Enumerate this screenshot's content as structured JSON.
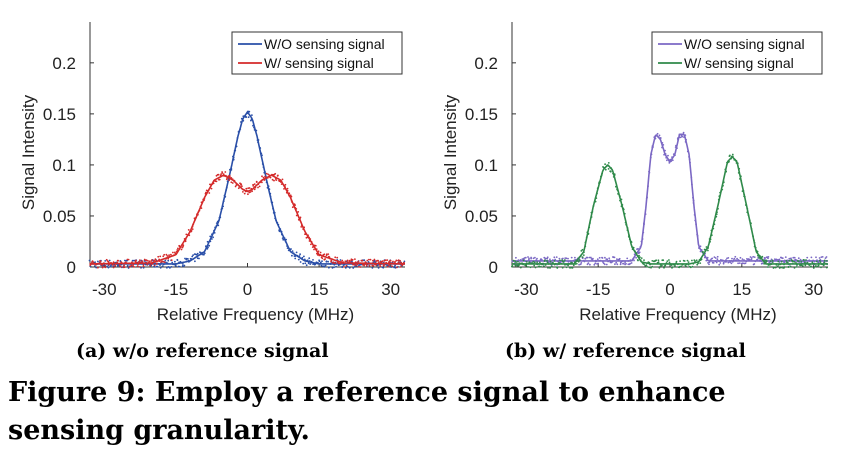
{
  "figure_caption": "Figure 9: Employ a reference signal to enhance sensing granularity.",
  "chart_data": [
    {
      "type": "line",
      "subcaption": "(a) w/o reference signal",
      "title": "",
      "xlabel": "Relative Frequency (MHz)",
      "ylabel": "Signal Intensity",
      "xlim": [
        -33,
        33
      ],
      "ylim": [
        0,
        0.24
      ],
      "xticks": [
        -30,
        -15,
        0,
        15,
        30
      ],
      "xtick_labels": [
        "-30",
        "-15",
        "0",
        "15",
        "30"
      ],
      "yticks": [
        0,
        0.05,
        0.1,
        0.15,
        0.2
      ],
      "ytick_labels": [
        "0",
        "0.05",
        "0.1",
        "0.15",
        "0.2"
      ],
      "grid": false,
      "legend_position": "top-right",
      "series": [
        {
          "name": "W/O sensing signal",
          "color": "#2a4fa8",
          "x": [
            -33,
            -15,
            -12,
            -9,
            -6,
            -4,
            -2,
            -1,
            0,
            1,
            2,
            4,
            6,
            9,
            12,
            15,
            33
          ],
          "values": [
            0.003,
            0.003,
            0.006,
            0.015,
            0.045,
            0.085,
            0.128,
            0.145,
            0.152,
            0.145,
            0.128,
            0.085,
            0.045,
            0.015,
            0.006,
            0.003,
            0.003
          ]
        },
        {
          "name": "W/ sensing signal",
          "color": "#d42a2a",
          "x": [
            -33,
            -20,
            -15,
            -12,
            -9,
            -7,
            -5,
            -3,
            -1,
            0,
            1,
            3,
            5,
            7,
            9,
            12,
            15,
            20,
            33
          ],
          "values": [
            0.003,
            0.004,
            0.012,
            0.035,
            0.068,
            0.085,
            0.09,
            0.085,
            0.076,
            0.074,
            0.076,
            0.085,
            0.09,
            0.085,
            0.068,
            0.035,
            0.012,
            0.004,
            0.003
          ]
        }
      ]
    },
    {
      "type": "line",
      "subcaption": "(b) w/ reference signal",
      "title": "",
      "xlabel": "Relative Frequency (MHz)",
      "ylabel": "Signal Intensity",
      "xlim": [
        -33,
        33
      ],
      "ylim": [
        0,
        0.24
      ],
      "xticks": [
        -30,
        -15,
        0,
        15,
        30
      ],
      "xtick_labels": [
        "-30",
        "-15",
        "0",
        "15",
        "30"
      ],
      "yticks": [
        0,
        0.05,
        0.1,
        0.15,
        0.2
      ],
      "ytick_labels": [
        "0",
        "0.05",
        "0.1",
        "0.15",
        "0.2"
      ],
      "grid": false,
      "legend_position": "top-right",
      "series": [
        {
          "name": "W/O sensing signal",
          "color": "#7b68c4",
          "x": [
            -33,
            -8,
            -6,
            -5,
            -4,
            -3,
            -2,
            -1,
            0,
            1,
            2,
            3,
            4,
            5,
            6,
            8,
            33
          ],
          "values": [
            0.006,
            0.006,
            0.02,
            0.06,
            0.11,
            0.13,
            0.125,
            0.11,
            0.103,
            0.11,
            0.13,
            0.13,
            0.11,
            0.06,
            0.02,
            0.006,
            0.006
          ]
        },
        {
          "name": "W/ sensing signal",
          "color": "#2f8a4a",
          "x": [
            -33,
            -20,
            -18,
            -16,
            -14,
            -13,
            -12,
            -10,
            -8,
            -6,
            -4,
            4,
            6,
            8,
            10,
            12,
            13,
            14,
            16,
            18,
            20,
            33
          ],
          "values": [
            0.003,
            0.003,
            0.015,
            0.06,
            0.095,
            0.1,
            0.095,
            0.06,
            0.02,
            0.005,
            0.003,
            0.003,
            0.005,
            0.02,
            0.06,
            0.103,
            0.108,
            0.103,
            0.06,
            0.015,
            0.003,
            0.003
          ]
        }
      ]
    }
  ]
}
